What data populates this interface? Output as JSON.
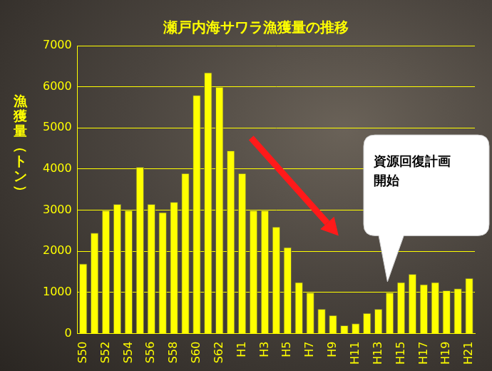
{
  "chart_data": {
    "type": "bar",
    "title": "瀬戸内海サワラ漁獲量の推移",
    "y_label": "漁獲量（トン）",
    "categories": [
      "S50",
      null,
      "S52",
      null,
      "S54",
      null,
      "S56",
      null,
      "S58",
      null,
      "S60",
      null,
      "S62",
      null,
      "H1",
      null,
      "H3",
      null,
      "H5",
      null,
      "H7",
      null,
      "H9",
      null,
      "H11",
      null,
      "H13",
      null,
      "H15",
      null,
      "H17",
      null,
      "H19",
      null,
      "H21"
    ],
    "values": [
      1700,
      2450,
      3000,
      3150,
      3000,
      4050,
      3150,
      2950,
      3200,
      3900,
      5800,
      6350,
      6000,
      4450,
      3900,
      3000,
      3000,
      2600,
      2100,
      1250,
      1000,
      600,
      450,
      200,
      250,
      500,
      600,
      1000,
      1250,
      1450,
      1200,
      1250,
      1050,
      1100,
      1350
    ],
    "color": "#ffff00",
    "ylim": [
      0,
      7000
    ],
    "yticks": [
      0,
      1000,
      2000,
      3000,
      4000,
      5000,
      6000,
      7000
    ],
    "grid": true,
    "annotations": [
      {
        "text": [
          "資源回復計画",
          "開始"
        ]
      }
    ]
  }
}
